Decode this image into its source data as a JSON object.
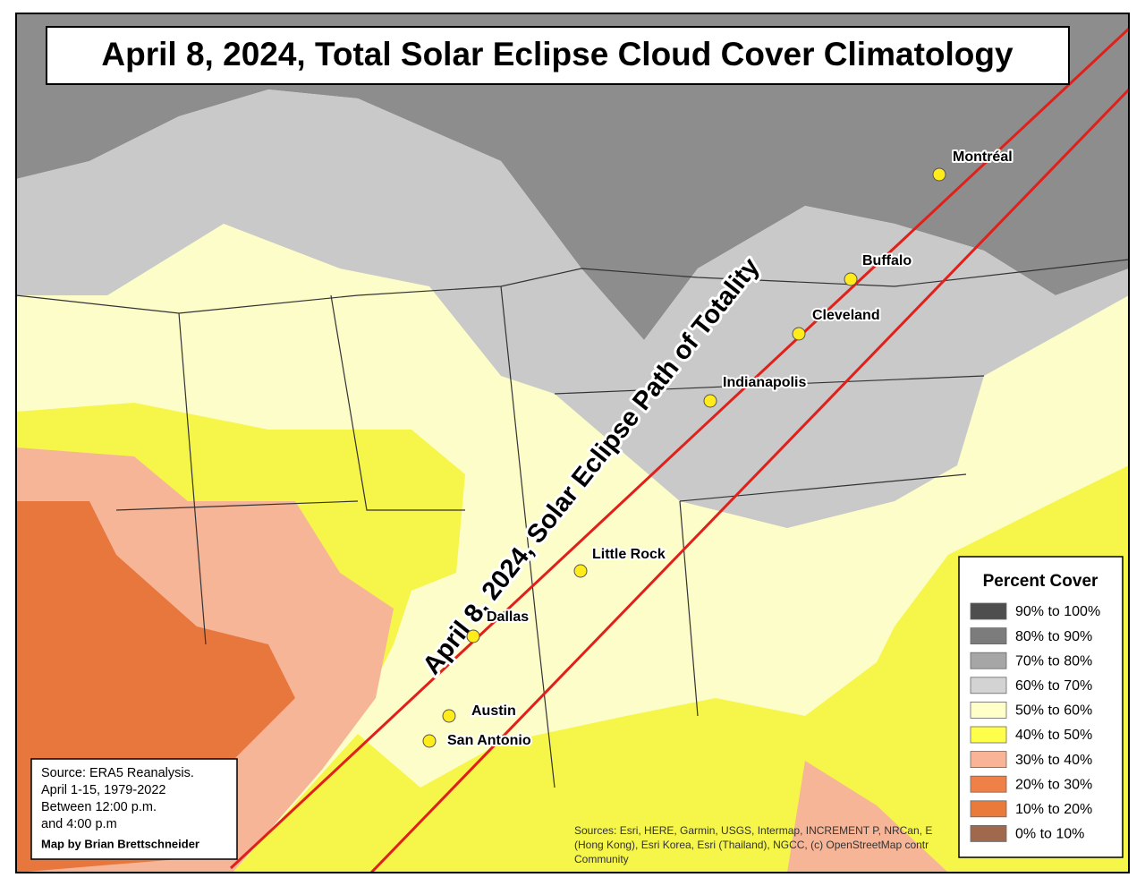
{
  "title": "April 8, 2024, Total Solar Eclipse Cloud Cover Climatology",
  "path_label": "April 8, 2024, Solar Eclipse Path of Totality",
  "cities": [
    {
      "name": "Montréal"
    },
    {
      "name": "Buffalo"
    },
    {
      "name": "Cleveland"
    },
    {
      "name": "Indianapolis"
    },
    {
      "name": "Little Rock"
    },
    {
      "name": "Dallas"
    },
    {
      "name": "Austin"
    },
    {
      "name": "San Antonio"
    }
  ],
  "legend": {
    "title": "Percent Cover",
    "items": [
      {
        "label": "90% to 100%",
        "color": "#4e4e4e"
      },
      {
        "label": "80% to 90%",
        "color": "#7c7c7c"
      },
      {
        "label": "70% to 80%",
        "color": "#a6a6a6"
      },
      {
        "label": "60% to 70%",
        "color": "#d3d3d3"
      },
      {
        "label": "50% to 60%",
        "color": "#ffffc8"
      },
      {
        "label": "40% to 50%",
        "color": "#ffff4a"
      },
      {
        "label": "30% to 40%",
        "color": "#f9b497"
      },
      {
        "label": "20% to 30%",
        "color": "#ee8048"
      },
      {
        "label": "10% to 20%",
        "color": "#ea7a3a"
      },
      {
        "label": "0% to 10%",
        "color": "#a0694e"
      }
    ]
  },
  "source": {
    "lines": [
      "Source: ERA5 Reanalysis.",
      "April 1-15, 1979-2022",
      "Between 12:00 p.m.",
      "and 4:00 p.m"
    ],
    "credit": "Map by Brian Brettschneider"
  },
  "attribution": [
    "Sources: Esri, HERE, Garmin, USGS, Intermap, INCREMENT P, NRCan, E",
    "(Hong Kong), Esri Korea, Esri (Thailand), NGCC, (c) OpenStreetMap contr",
    "Community"
  ]
}
